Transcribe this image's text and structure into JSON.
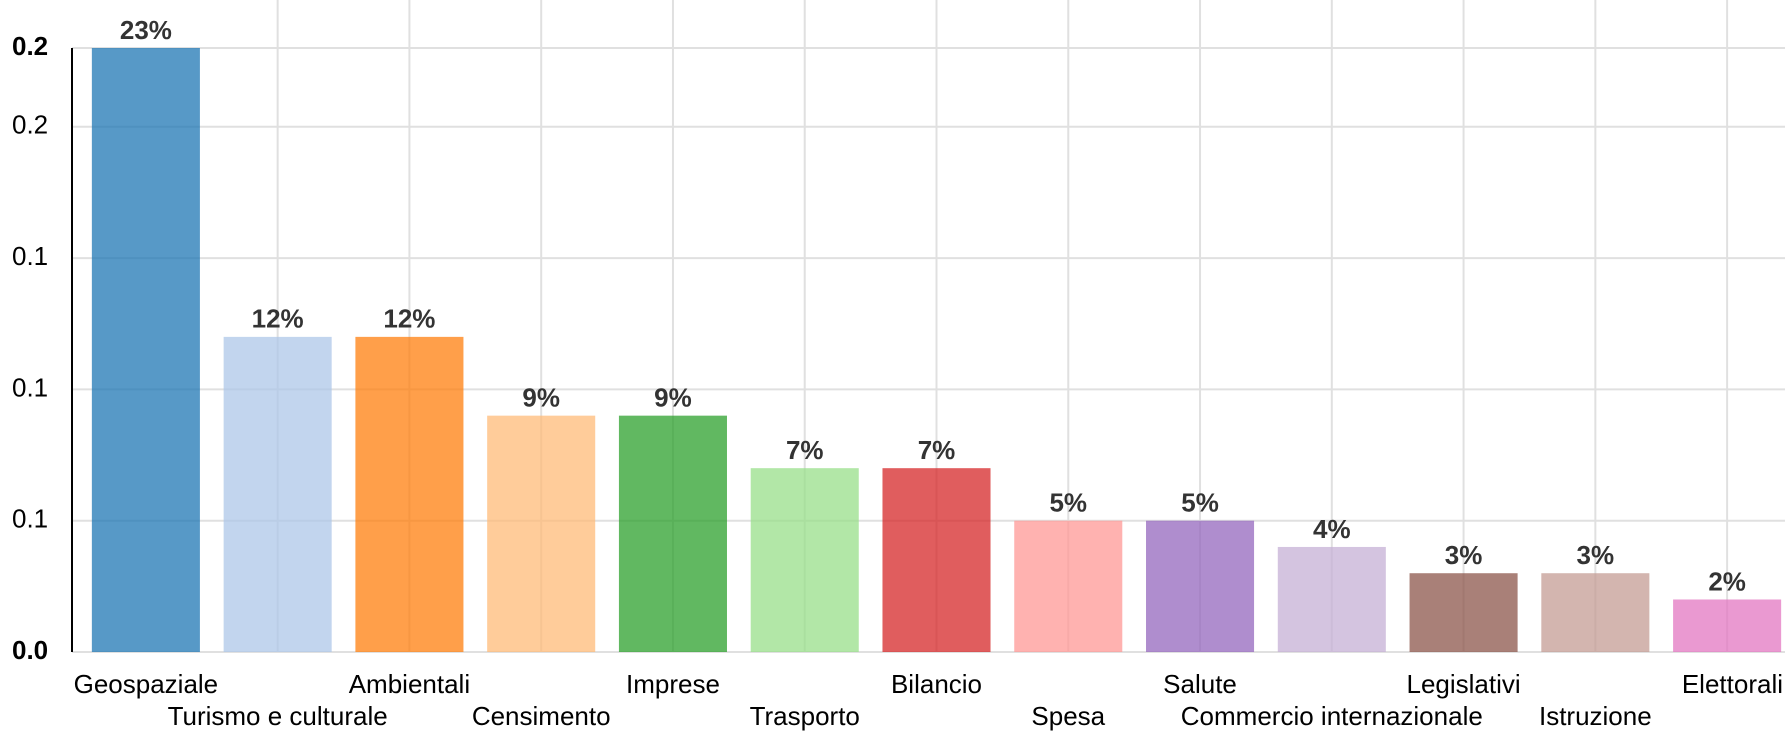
{
  "chart_data": {
    "type": "bar",
    "categories": [
      "Geospaziale",
      "Turismo e culturale",
      "Ambientali",
      "Censimento",
      "Imprese",
      "Trasporto",
      "Bilancio",
      "Spesa",
      "Salute",
      "Commercio internazionale",
      "Legislativi",
      "Istruzione",
      "Elettorali"
    ],
    "values": [
      0.23,
      0.12,
      0.12,
      0.09,
      0.09,
      0.07,
      0.07,
      0.05,
      0.05,
      0.04,
      0.03,
      0.03,
      0.02
    ],
    "value_labels": [
      "23%",
      "12%",
      "12%",
      "9%",
      "9%",
      "7%",
      "7%",
      "5%",
      "5%",
      "4%",
      "3%",
      "3%",
      "2%"
    ],
    "colors": [
      "#1f77b4",
      "#aec7e8",
      "#ff7f0e",
      "#ffbb78",
      "#2ca02c",
      "#98df8a",
      "#d62728",
      "#ff9896",
      "#9467bd",
      "#c5b0d5",
      "#8c564b",
      "#c49c94",
      "#e377c2"
    ],
    "ylim": [
      0,
      0.23
    ],
    "yticks": [
      {
        "value": 0,
        "label": "0.0"
      },
      {
        "value": 0.05,
        "label": "0.1"
      },
      {
        "value": 0.1,
        "label": "0.1"
      },
      {
        "value": 0.15,
        "label": "0.1"
      },
      {
        "value": 0.2,
        "label": "0.2"
      },
      {
        "value": 0.23,
        "label": "0.2"
      }
    ],
    "grid": true
  }
}
